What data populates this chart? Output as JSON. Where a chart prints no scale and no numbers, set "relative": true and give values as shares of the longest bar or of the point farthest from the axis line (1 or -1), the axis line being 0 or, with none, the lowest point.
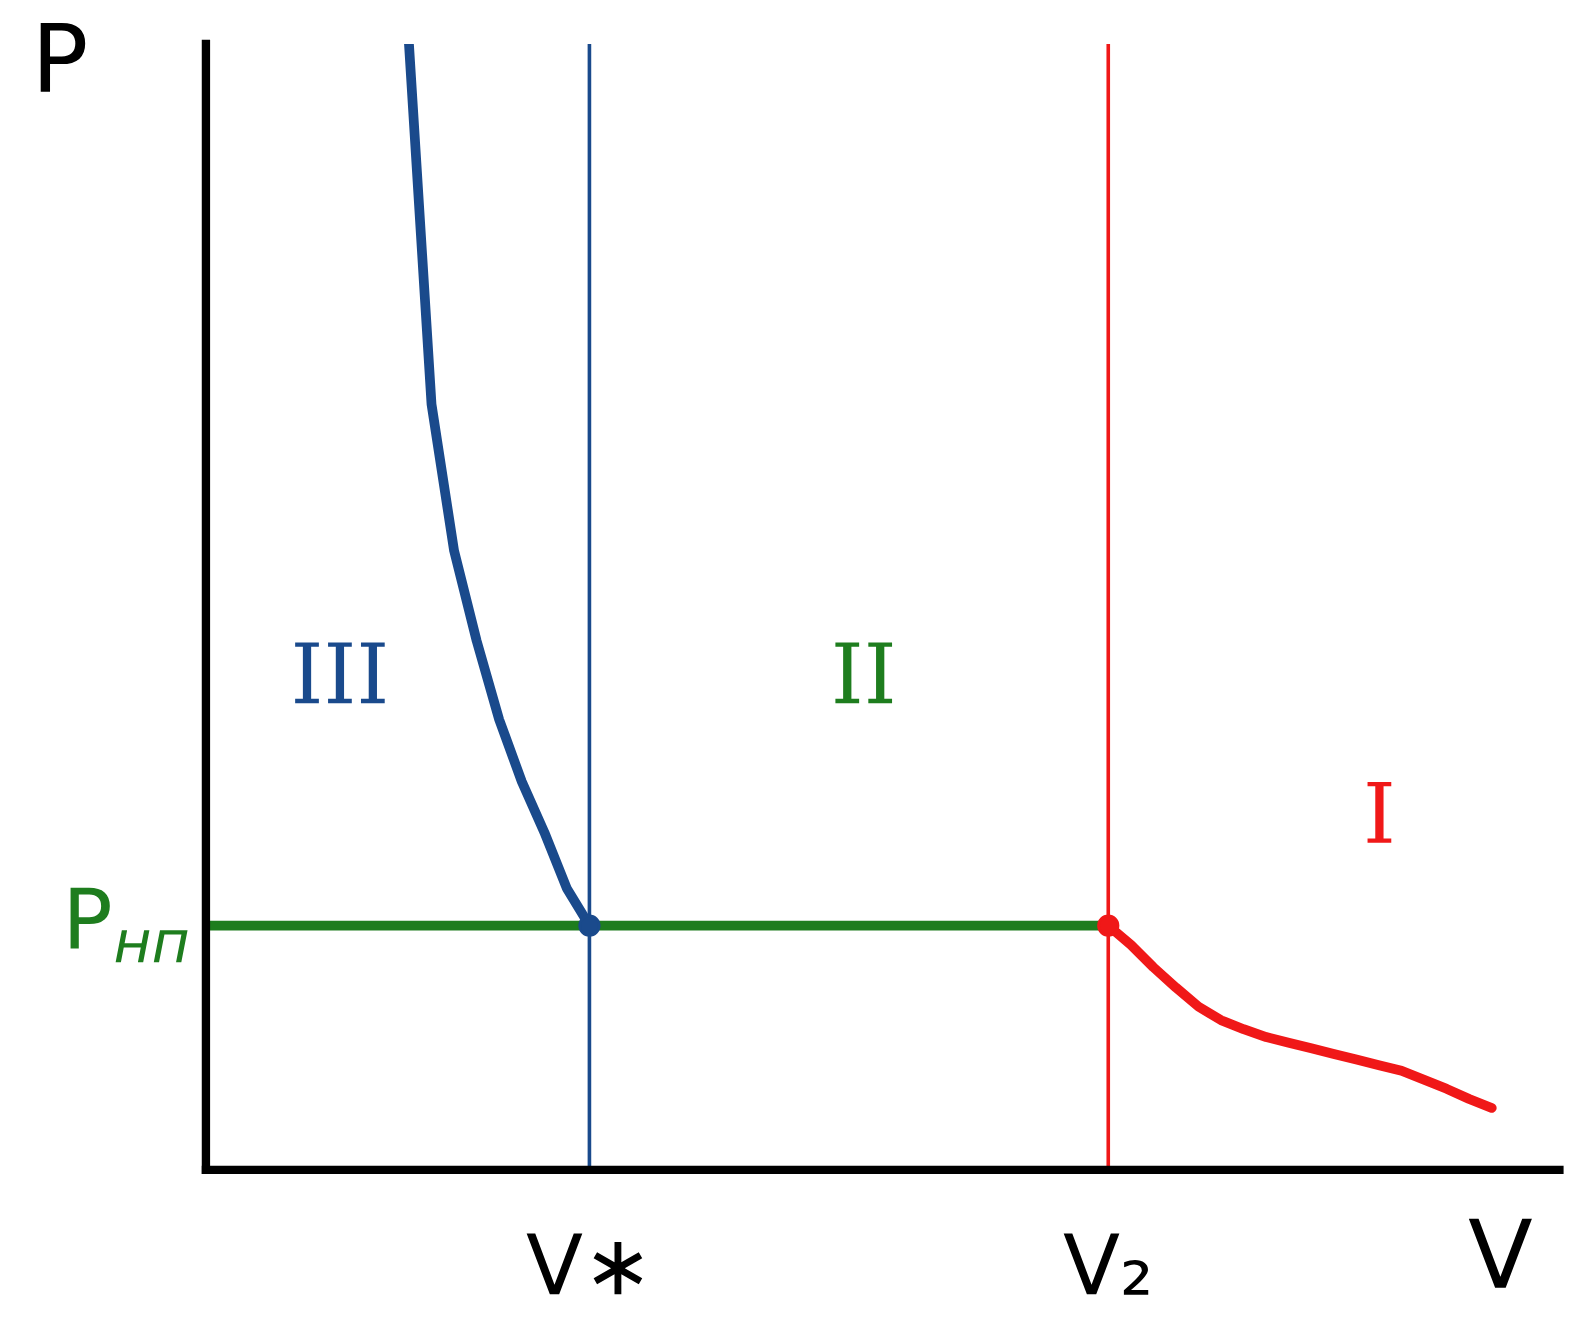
{
  "chart_data": {
    "type": "line",
    "relative": true,
    "xlabel": "V",
    "ylabel": "P",
    "tick_labels": "x",
    "line_style": "solid",
    "categories": [
      null,
      null,
      null,
      null,
      null,
      null,
      null,
      null,
      null,
      null,
      null,
      null,
      null,
      null,
      null,
      null,
      null,
      "V∗",
      null,
      null,
      null,
      null,
      null,
      null,
      null,
      null,
      null,
      null,
      null,
      null,
      null,
      null,
      null,
      null,
      null,
      null,
      null,
      null,
      null,
      null,
      "V₂",
      null,
      null,
      null,
      null,
      null,
      null,
      null,
      null,
      null,
      null,
      null,
      null,
      null,
      null,
      null,
      null,
      null,
      null,
      null,
      null
    ],
    "series": [
      {
        "color": "#1a4a8c",
        "values": [
          null,
          null,
          null,
          null,
          null,
          null,
          null,
          null,
          null,
          1.0,
          0.68,
          0.55,
          0.47,
          0.4,
          0.345,
          0.3,
          0.25,
          0.217,
          null,
          null,
          null,
          null,
          null,
          null,
          null,
          null,
          null,
          null,
          null,
          null,
          null,
          null,
          null,
          null,
          null,
          null,
          null,
          null,
          null,
          null,
          null,
          null,
          null,
          null,
          null,
          null,
          null,
          null,
          null,
          null,
          null,
          null,
          null,
          null,
          null,
          null,
          null,
          null,
          null,
          null,
          null
        ]
      },
      {
        "name": "P$_{нп}$",
        "color": "#1e7d1e",
        "values": [
          0.217,
          0.217,
          0.217,
          0.217,
          0.217,
          0.217,
          0.217,
          0.217,
          0.217,
          0.217,
          0.217,
          0.217,
          0.217,
          0.217,
          0.217,
          0.217,
          0.217,
          0.217,
          0.217,
          0.217,
          0.217,
          0.217,
          0.217,
          0.217,
          0.217,
          0.217,
          0.217,
          0.217,
          0.217,
          0.217,
          0.217,
          0.217,
          0.217,
          0.217,
          0.217,
          0.217,
          0.217,
          0.217,
          0.217,
          0.217,
          0.217,
          null,
          null,
          null,
          null,
          null,
          null,
          null,
          null,
          null,
          null,
          null,
          null,
          null,
          null,
          null,
          null,
          null,
          null,
          null,
          null
        ]
      },
      {
        "color": "#f01818",
        "values": [
          null,
          null,
          null,
          null,
          null,
          null,
          null,
          null,
          null,
          null,
          null,
          null,
          null,
          null,
          null,
          null,
          null,
          null,
          null,
          null,
          null,
          null,
          null,
          null,
          null,
          null,
          null,
          null,
          null,
          null,
          null,
          null,
          null,
          null,
          null,
          null,
          null,
          null,
          null,
          null,
          0.217,
          0.2,
          0.18,
          0.162,
          0.145,
          0.133,
          0.125,
          0.118,
          0.113,
          0.108,
          0.103,
          0.098,
          0.093,
          0.088,
          0.08,
          0.072,
          0.063,
          0.055,
          null,
          null,
          null
        ]
      }
    ],
    "ref_lines": [
      {
        "axis": "x",
        "value": "V∗",
        "color": "#1a4a8c"
      },
      {
        "axis": "x",
        "value": "V₂",
        "color": "#f01818"
      }
    ],
    "annotations": [
      "III",
      "II",
      "I"
    ]
  }
}
